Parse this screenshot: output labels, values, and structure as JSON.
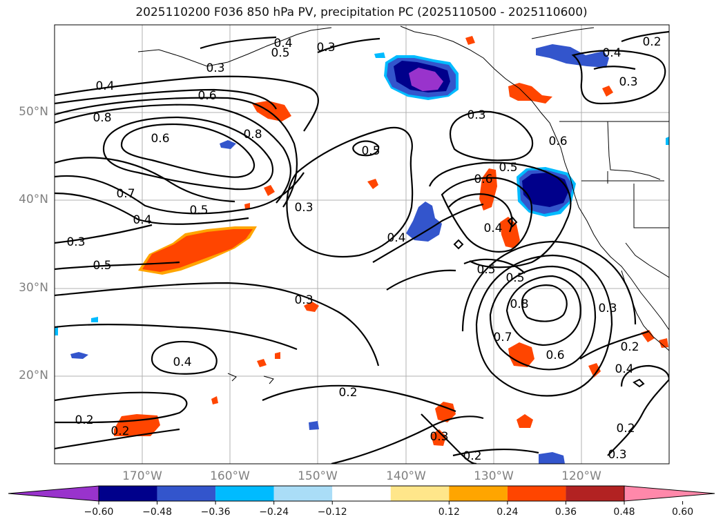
{
  "title": "2025110200 F036 850 hPa PV, precipitation PC (2025110500 - 2025110600)",
  "map": {
    "lon_range": [
      -180,
      -110
    ],
    "lat_range": [
      10,
      60
    ],
    "lat_labels": [
      "50°N",
      "40°N",
      "30°N",
      "20°N"
    ],
    "lon_labels": [
      "170°W",
      "160°W",
      "150°W",
      "140°W",
      "130°W",
      "120°W"
    ],
    "grid": true
  },
  "contour_labels": [
    "0.4",
    "0.5",
    "0.3",
    "0.4",
    "0.3",
    "0.6",
    "0.8",
    "0.6",
    "0.8",
    "0.5",
    "0.3",
    "0.7",
    "0.5",
    "0.4",
    "0.3",
    "0.5",
    "0.6",
    "0.5",
    "0.6",
    "0.4",
    "0.4",
    "0.5",
    "0.5",
    "0.8",
    "0.3",
    "0.3",
    "0.7",
    "0.4",
    "0.2",
    "0.6",
    "0.2",
    "0.4",
    "0.2",
    "0.2",
    "0.2",
    "0.3",
    "0.2",
    "0.3",
    "0.3",
    "0.4",
    "0.2",
    "0.3"
  ],
  "colorbar": {
    "colors": [
      "#9933cc",
      "#00008b",
      "#3355cc",
      "#00bbff",
      "#aaddf7",
      "#ffffff",
      "#ffe68a",
      "#ffa500",
      "#ff4500",
      "#b22222",
      "#ff88aa"
    ],
    "ticks": [
      "−0.60",
      "−0.48",
      "−0.36",
      "−0.24",
      "−0.12",
      "0.12",
      "0.24",
      "0.36",
      "0.48",
      "0.60"
    ],
    "extend": "both"
  }
}
